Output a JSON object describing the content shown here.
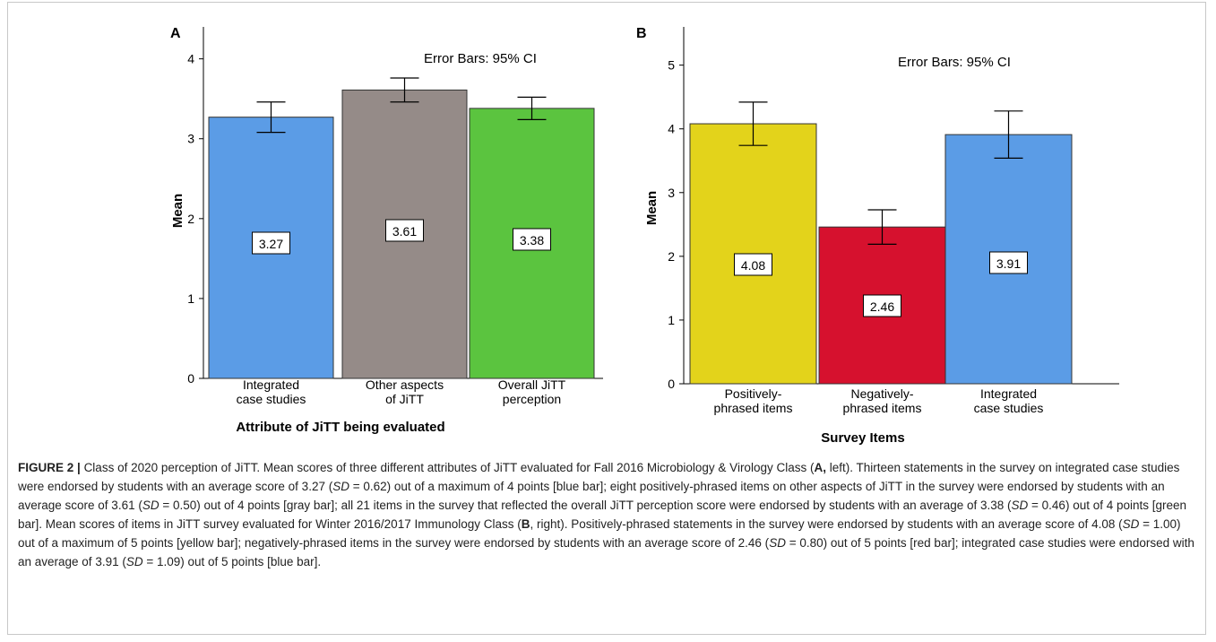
{
  "chart_data": [
    {
      "type": "bar",
      "panel_label": "A",
      "note": "Error Bars: 95% CI",
      "ylabel": "Mean",
      "xlabel": "Attribute of JiTT being evaluated",
      "ylim": [
        0,
        4.4
      ],
      "yticks": [
        0,
        1,
        2,
        3,
        4
      ],
      "categories": [
        [
          "Integrated",
          "case studies"
        ],
        [
          "Other aspects",
          "of JiTT"
        ],
        [
          "Overall JiTT",
          "perception"
        ]
      ],
      "values": [
        3.27,
        3.61,
        3.38
      ],
      "value_labels": [
        "3.27",
        "3.61",
        "3.38"
      ],
      "ci_low": [
        3.08,
        3.46,
        3.24
      ],
      "ci_high": [
        3.46,
        3.76,
        3.52
      ],
      "colors": [
        "#5b9ce6",
        "#958b88",
        "#5bc43f"
      ]
    },
    {
      "type": "bar",
      "panel_label": "B",
      "note": "Error Bars: 95% CI",
      "ylabel": "Mean",
      "xlabel": "Survey Items",
      "ylim": [
        0,
        5.6
      ],
      "yticks": [
        0,
        1,
        2,
        3,
        4,
        5
      ],
      "categories": [
        [
          "Positively-",
          "phrased items"
        ],
        [
          "Negatively-",
          "phrased items"
        ],
        [
          "Integrated",
          "case studies"
        ]
      ],
      "values": [
        4.08,
        2.46,
        3.91
      ],
      "value_labels": [
        "4.08",
        "2.46",
        "3.91"
      ],
      "ci_low": [
        3.74,
        2.19,
        3.54
      ],
      "ci_high": [
        4.42,
        2.73,
        4.28
      ],
      "colors": [
        "#e3d31b",
        "#d6112e",
        "#5b9ce6"
      ]
    }
  ],
  "caption": {
    "label": "FIGURE 2 |",
    "text": "Class of 2020 perception of JiTT. Mean scores of three different attributes of JiTT evaluated for Fall 2016 Microbiology & Virology Class (",
    "a_ref": "A,",
    "text2": " left). Thirteen statements in the survey on integrated case studies were endorsed by students with an average score of 3.27 (",
    "sd1": "SD",
    "text3": " = 0.62) out of a maximum of 4 points [blue bar]; eight positively-phrased items on other aspects of JiTT in the survey were endorsed by students with an average score of 3.61 (",
    "sd2": "SD",
    "text4": " = 0.50) out of 4 points [gray bar]; all 21 items in the survey that reflected the overall JiTT perception score were endorsed by students with an average of 3.38 (",
    "sd3": "SD",
    "text5": " = 0.46) out of 4 points [green bar]. Mean scores of items in JiTT survey evaluated for Winter 2016/2017 Immunology Class (",
    "b_ref": "B",
    "text6": ", right). Positively-phrased statements in the survey were endorsed by students with an average score of 4.08 (",
    "sd4": "SD",
    "text7": " = 1.00) out of a maximum of 5 points [yellow bar]; negatively-phrased items in the survey were endorsed by students with an average score of 2.46 (",
    "sd5": "SD",
    "text8": " = 0.80) out of 5 points [red bar]; integrated case studies were endorsed with an average of 3.91 (",
    "sd6": "SD",
    "text9": " = 1.09) out of 5 points [blue bar]."
  }
}
